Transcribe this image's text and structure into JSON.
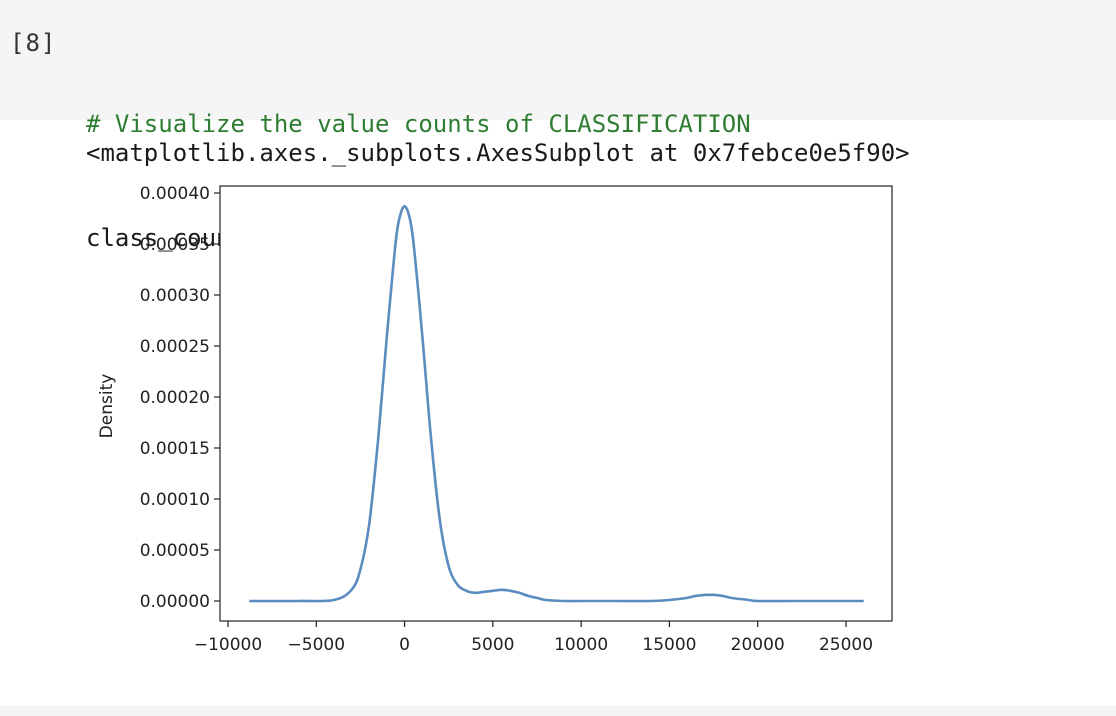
{
  "cell": {
    "prompt": "[8]",
    "code_comment": "# Visualize the value counts of CLASSIFICATION",
    "code_line": "class_counts.plot.density()"
  },
  "output": {
    "repr_text": "<matplotlib.axes._subplots.AxesSubplot at 0x7febce0e5f90>"
  },
  "colors": {
    "cell_background": "#f5f5f5",
    "comment_color": "#2e7d32",
    "line_color": "#5b8cc0"
  },
  "chart_data": {
    "type": "line",
    "title": "",
    "xlabel": "",
    "ylabel": "Density",
    "xlim": [
      -10000,
      26000
    ],
    "ylim": [
      0,
      0.0004
    ],
    "grid": false,
    "x_ticks": [
      -10000,
      -5000,
      0,
      5000,
      10000,
      15000,
      20000,
      25000
    ],
    "x_tick_labels": [
      "−10000",
      "−5000",
      "0",
      "5000",
      "10000",
      "15000",
      "20000",
      "25000"
    ],
    "y_ticks": [
      0,
      5e-05,
      0.0001,
      0.00015,
      0.0002,
      0.00025,
      0.0003,
      0.00035,
      0.0004
    ],
    "y_tick_labels": [
      "0.00000",
      "0.00005",
      "0.00010",
      "0.00015",
      "0.00020",
      "0.00025",
      "0.00030",
      "0.00035",
      "0.00040"
    ],
    "series": [
      {
        "x": [
          -8800,
          -6000,
          -4000,
          -3000,
          -2500,
          -2000,
          -1500,
          -1000,
          -500,
          -250,
          0,
          250,
          500,
          1000,
          1500,
          2000,
          2500,
          3000,
          3500,
          4000,
          4500,
          5000,
          5500,
          6000,
          6500,
          7000,
          7500,
          8000,
          9000,
          10000,
          12000,
          14000,
          15000,
          15500,
          16000,
          16500,
          17000,
          17300,
          17600,
          18000,
          18500,
          19000,
          19500,
          20000,
          22000,
          26000
        ],
        "y": [
          0,
          0,
          1e-06,
          1.1e-05,
          3.1e-05,
          7.6e-05,
          0.000158,
          0.00026,
          0.000352,
          0.000378,
          0.000387,
          0.000378,
          0.000352,
          0.000261,
          0.000159,
          7.9e-05,
          3.4e-05,
          1.6e-05,
          1e-05,
          8e-06,
          9e-06,
          1e-05,
          1.1e-05,
          1e-05,
          8e-06,
          5e-06,
          3e-06,
          1e-06,
          0,
          0,
          0,
          0,
          1e-06,
          2e-06,
          3e-06,
          5e-06,
          6e-06,
          6e-06,
          6e-06,
          5e-06,
          3e-06,
          2e-06,
          1e-06,
          0,
          0,
          0
        ]
      }
    ]
  }
}
